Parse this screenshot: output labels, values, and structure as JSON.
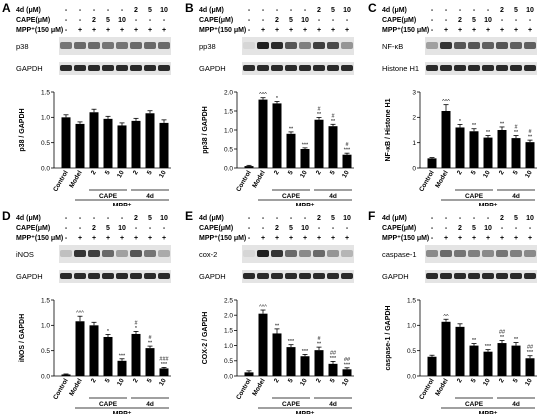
{
  "treatment_rows": {
    "r4d": "4d (μM)",
    "cape": "CAPE(μM)",
    "mpp": "MPP⁺(150 μM)",
    "r4d_values": [
      "-",
      "-",
      "-",
      "-",
      "-",
      "2",
      "5",
      "10"
    ],
    "cape_values": [
      "-",
      "-",
      "2",
      "5",
      "10",
      "-",
      "-",
      "-"
    ],
    "mpp_values": [
      "-",
      "+",
      "+",
      "+",
      "+",
      "+",
      "+",
      "+"
    ]
  },
  "categories": [
    "Control",
    "Model",
    "2",
    "5",
    "10",
    "2",
    "5",
    "10"
  ],
  "groups": {
    "cape": "CAPE",
    "d4": "4d"
  },
  "xgroup_label": "MPP⁺",
  "colors": {
    "bar": "#000000",
    "error": "#000000"
  },
  "panels": [
    {
      "letter": "A",
      "band_top": "p38",
      "band_bottom": "GAPDH",
      "ylabel": "p38 / GAPDH",
      "ylim": [
        0,
        1.5
      ],
      "yticks": [
        "0.0",
        "0.5",
        "1.0",
        "1.5"
      ],
      "values": [
        1.0,
        0.87,
        1.1,
        0.97,
        0.84,
        0.93,
        1.08,
        0.89
      ],
      "errors": [
        0.05,
        0.04,
        0.06,
        0.05,
        0.05,
        0.05,
        0.05,
        0.06
      ],
      "sig": [
        "",
        "",
        "",
        "",
        "",
        "",
        "",
        ""
      ],
      "sig2": [
        "",
        "",
        "",
        "",
        "",
        "",
        "",
        ""
      ],
      "band_top_intensity": [
        0.55,
        0.6,
        0.6,
        0.55,
        0.55,
        0.6,
        0.6,
        0.6
      ],
      "band_bottom_intensity": [
        0.9,
        0.9,
        0.9,
        0.9,
        0.9,
        0.9,
        0.9,
        0.9
      ]
    },
    {
      "letter": "B",
      "band_top": "pp38",
      "band_bottom": "GAPDH",
      "ylabel": "pp38 / GAPDH",
      "ylim": [
        0,
        2.0
      ],
      "yticks": [
        "0.0",
        "0.5",
        "1.0",
        "1.5",
        "2.0"
      ],
      "values": [
        0.05,
        1.8,
        1.7,
        0.9,
        0.5,
        1.27,
        1.1,
        0.35
      ],
      "errors": [
        0.02,
        0.05,
        0.05,
        0.05,
        0.03,
        0.06,
        0.05,
        0.04
      ],
      "sig": [
        "",
        "^^^",
        "*",
        "**",
        "***",
        "**",
        "**",
        "***"
      ],
      "sig2": [
        "",
        "",
        "",
        "",
        "",
        "#",
        "#",
        "#"
      ],
      "band_top_intensity": [
        0.1,
        0.95,
        0.9,
        0.7,
        0.5,
        0.8,
        0.75,
        0.4
      ],
      "band_bottom_intensity": [
        0.9,
        0.9,
        0.9,
        0.9,
        0.9,
        0.9,
        0.9,
        0.9
      ]
    },
    {
      "letter": "C",
      "band_top": "NF-κB",
      "band_bottom": "Histone H1",
      "ylabel": "NF-κB / Histone H1",
      "ylim": [
        0,
        3
      ],
      "yticks": [
        "0",
        "1",
        "2",
        "3"
      ],
      "values": [
        0.38,
        2.25,
        1.6,
        1.45,
        1.2,
        1.5,
        1.18,
        1.02
      ],
      "errors": [
        0.03,
        0.25,
        0.12,
        0.1,
        0.08,
        0.12,
        0.1,
        0.08
      ],
      "sig": [
        "",
        "^^^",
        "*",
        "**",
        "**",
        "**",
        "**",
        "**"
      ],
      "sig2": [
        "",
        "",
        "",
        "",
        "",
        "",
        "#",
        "#"
      ],
      "band_top_intensity": [
        0.35,
        0.85,
        0.7,
        0.7,
        0.65,
        0.7,
        0.65,
        0.65
      ],
      "band_bottom_intensity": [
        0.9,
        0.9,
        0.9,
        0.9,
        0.9,
        0.9,
        0.9,
        0.9
      ]
    },
    {
      "letter": "D",
      "band_top": "iNOS",
      "band_bottom": "GAPDH",
      "ylabel": "iNOS / GAPDH",
      "ylim": [
        0,
        1.5
      ],
      "yticks": [
        "0.0",
        "0.5",
        "1.0",
        "1.5"
      ],
      "values": [
        0.03,
        1.08,
        1.0,
        0.77,
        0.3,
        0.83,
        0.55,
        0.15
      ],
      "errors": [
        0.01,
        0.1,
        0.06,
        0.05,
        0.04,
        0.05,
        0.04,
        0.02
      ],
      "sig": [
        "",
        "^^^",
        "",
        "*",
        "***",
        "*",
        "**",
        "***"
      ],
      "sig2": [
        "",
        "",
        "",
        "",
        "",
        "#",
        "#",
        "###"
      ],
      "band_top_intensity": [
        0.2,
        0.85,
        0.8,
        0.6,
        0.35,
        0.7,
        0.55,
        0.3
      ],
      "band_bottom_intensity": [
        0.9,
        0.9,
        0.9,
        0.9,
        0.9,
        0.9,
        0.9,
        0.9
      ]
    },
    {
      "letter": "E",
      "band_top": "cox-2",
      "band_bottom": "GAPDH",
      "ylabel": "COX-2 / GAPDH",
      "ylim": [
        0,
        2.5
      ],
      "yticks": [
        "0.0",
        "0.5",
        "1.0",
        "1.5",
        "2.0",
        "2.5"
      ],
      "values": [
        0.12,
        2.05,
        1.4,
        0.95,
        0.65,
        0.85,
        0.4,
        0.22
      ],
      "errors": [
        0.05,
        0.12,
        0.15,
        0.08,
        0.06,
        0.1,
        0.08,
        0.05
      ],
      "sig": [
        "",
        "^^^",
        "**",
        "***",
        "***",
        "**",
        "***",
        "***"
      ],
      "sig2": [
        "",
        "",
        "",
        "",
        "",
        "#",
        "##",
        "##"
      ],
      "band_top_intensity": [
        0.1,
        0.95,
        0.85,
        0.6,
        0.45,
        0.6,
        0.4,
        0.25
      ],
      "band_bottom_intensity": [
        0.9,
        0.9,
        0.9,
        0.9,
        0.9,
        0.9,
        0.9,
        0.9
      ]
    },
    {
      "letter": "F",
      "band_top": "caspase-1",
      "band_bottom": "GAPDH",
      "ylabel": "caspase-1 / GAPDH",
      "ylim": [
        0,
        1.5
      ],
      "yticks": [
        "0.0",
        "0.5",
        "1.0",
        "1.5"
      ],
      "values": [
        0.38,
        1.07,
        0.97,
        0.6,
        0.48,
        0.65,
        0.6,
        0.35
      ],
      "errors": [
        0.03,
        0.05,
        0.06,
        0.04,
        0.04,
        0.05,
        0.06,
        0.05
      ],
      "sig": [
        "",
        "^^",
        "",
        "**",
        "***",
        "**",
        "**",
        "***"
      ],
      "sig2": [
        "",
        "",
        "",
        "",
        "",
        "##",
        "",
        "##"
      ],
      "band_top_intensity": [
        0.45,
        0.6,
        0.55,
        0.5,
        0.45,
        0.55,
        0.5,
        0.45
      ],
      "band_bottom_intensity": [
        0.9,
        0.9,
        0.9,
        0.9,
        0.9,
        0.9,
        0.9,
        0.9
      ]
    }
  ],
  "chart_data": [
    {
      "type": "bar",
      "title": "",
      "categories": [
        "Control",
        "Model",
        "CAPE 2",
        "CAPE 5",
        "CAPE 10",
        "4d 2",
        "4d 5",
        "4d 10"
      ],
      "values": [
        1.0,
        0.87,
        1.1,
        0.97,
        0.84,
        0.93,
        1.08,
        0.89
      ],
      "ylabel": "p38 / GAPDH",
      "xlabel": "MPP⁺",
      "ylim": [
        0,
        1.5
      ]
    },
    {
      "type": "bar",
      "title": "",
      "categories": [
        "Control",
        "Model",
        "CAPE 2",
        "CAPE 5",
        "CAPE 10",
        "4d 2",
        "4d 5",
        "4d 10"
      ],
      "values": [
        0.05,
        1.8,
        1.7,
        0.9,
        0.5,
        1.27,
        1.1,
        0.35
      ],
      "ylabel": "pp38 / GAPDH",
      "xlabel": "MPP⁺",
      "ylim": [
        0,
        2.0
      ]
    },
    {
      "type": "bar",
      "title": "",
      "categories": [
        "Control",
        "Model",
        "CAPE 2",
        "CAPE 5",
        "CAPE 10",
        "4d 2",
        "4d 5",
        "4d 10"
      ],
      "values": [
        0.38,
        2.25,
        1.6,
        1.45,
        1.2,
        1.5,
        1.18,
        1.02
      ],
      "ylabel": "NF-κB / Histone H1",
      "xlabel": "MPP⁺",
      "ylim": [
        0,
        3
      ]
    },
    {
      "type": "bar",
      "title": "",
      "categories": [
        "Control",
        "Model",
        "CAPE 2",
        "CAPE 5",
        "CAPE 10",
        "4d 2",
        "4d 5",
        "4d 10"
      ],
      "values": [
        0.03,
        1.08,
        1.0,
        0.77,
        0.3,
        0.83,
        0.55,
        0.15
      ],
      "ylabel": "iNOS / GAPDH",
      "xlabel": "MPP⁺",
      "ylim": [
        0,
        1.5
      ]
    },
    {
      "type": "bar",
      "title": "",
      "categories": [
        "Control",
        "Model",
        "CAPE 2",
        "CAPE 5",
        "CAPE 10",
        "4d 2",
        "4d 5",
        "4d 10"
      ],
      "values": [
        0.12,
        2.05,
        1.4,
        0.95,
        0.65,
        0.85,
        0.4,
        0.22
      ],
      "ylabel": "COX-2 / GAPDH",
      "xlabel": "MPP⁺",
      "ylim": [
        0,
        2.5
      ]
    },
    {
      "type": "bar",
      "title": "",
      "categories": [
        "Control",
        "Model",
        "CAPE 2",
        "CAPE 5",
        "CAPE 10",
        "4d 2",
        "4d 5",
        "4d 10"
      ],
      "values": [
        0.38,
        1.07,
        0.97,
        0.6,
        0.48,
        0.65,
        0.6,
        0.35
      ],
      "ylabel": "caspase-1 / GAPDH",
      "xlabel": "MPP⁺",
      "ylim": [
        0,
        1.5
      ]
    }
  ]
}
